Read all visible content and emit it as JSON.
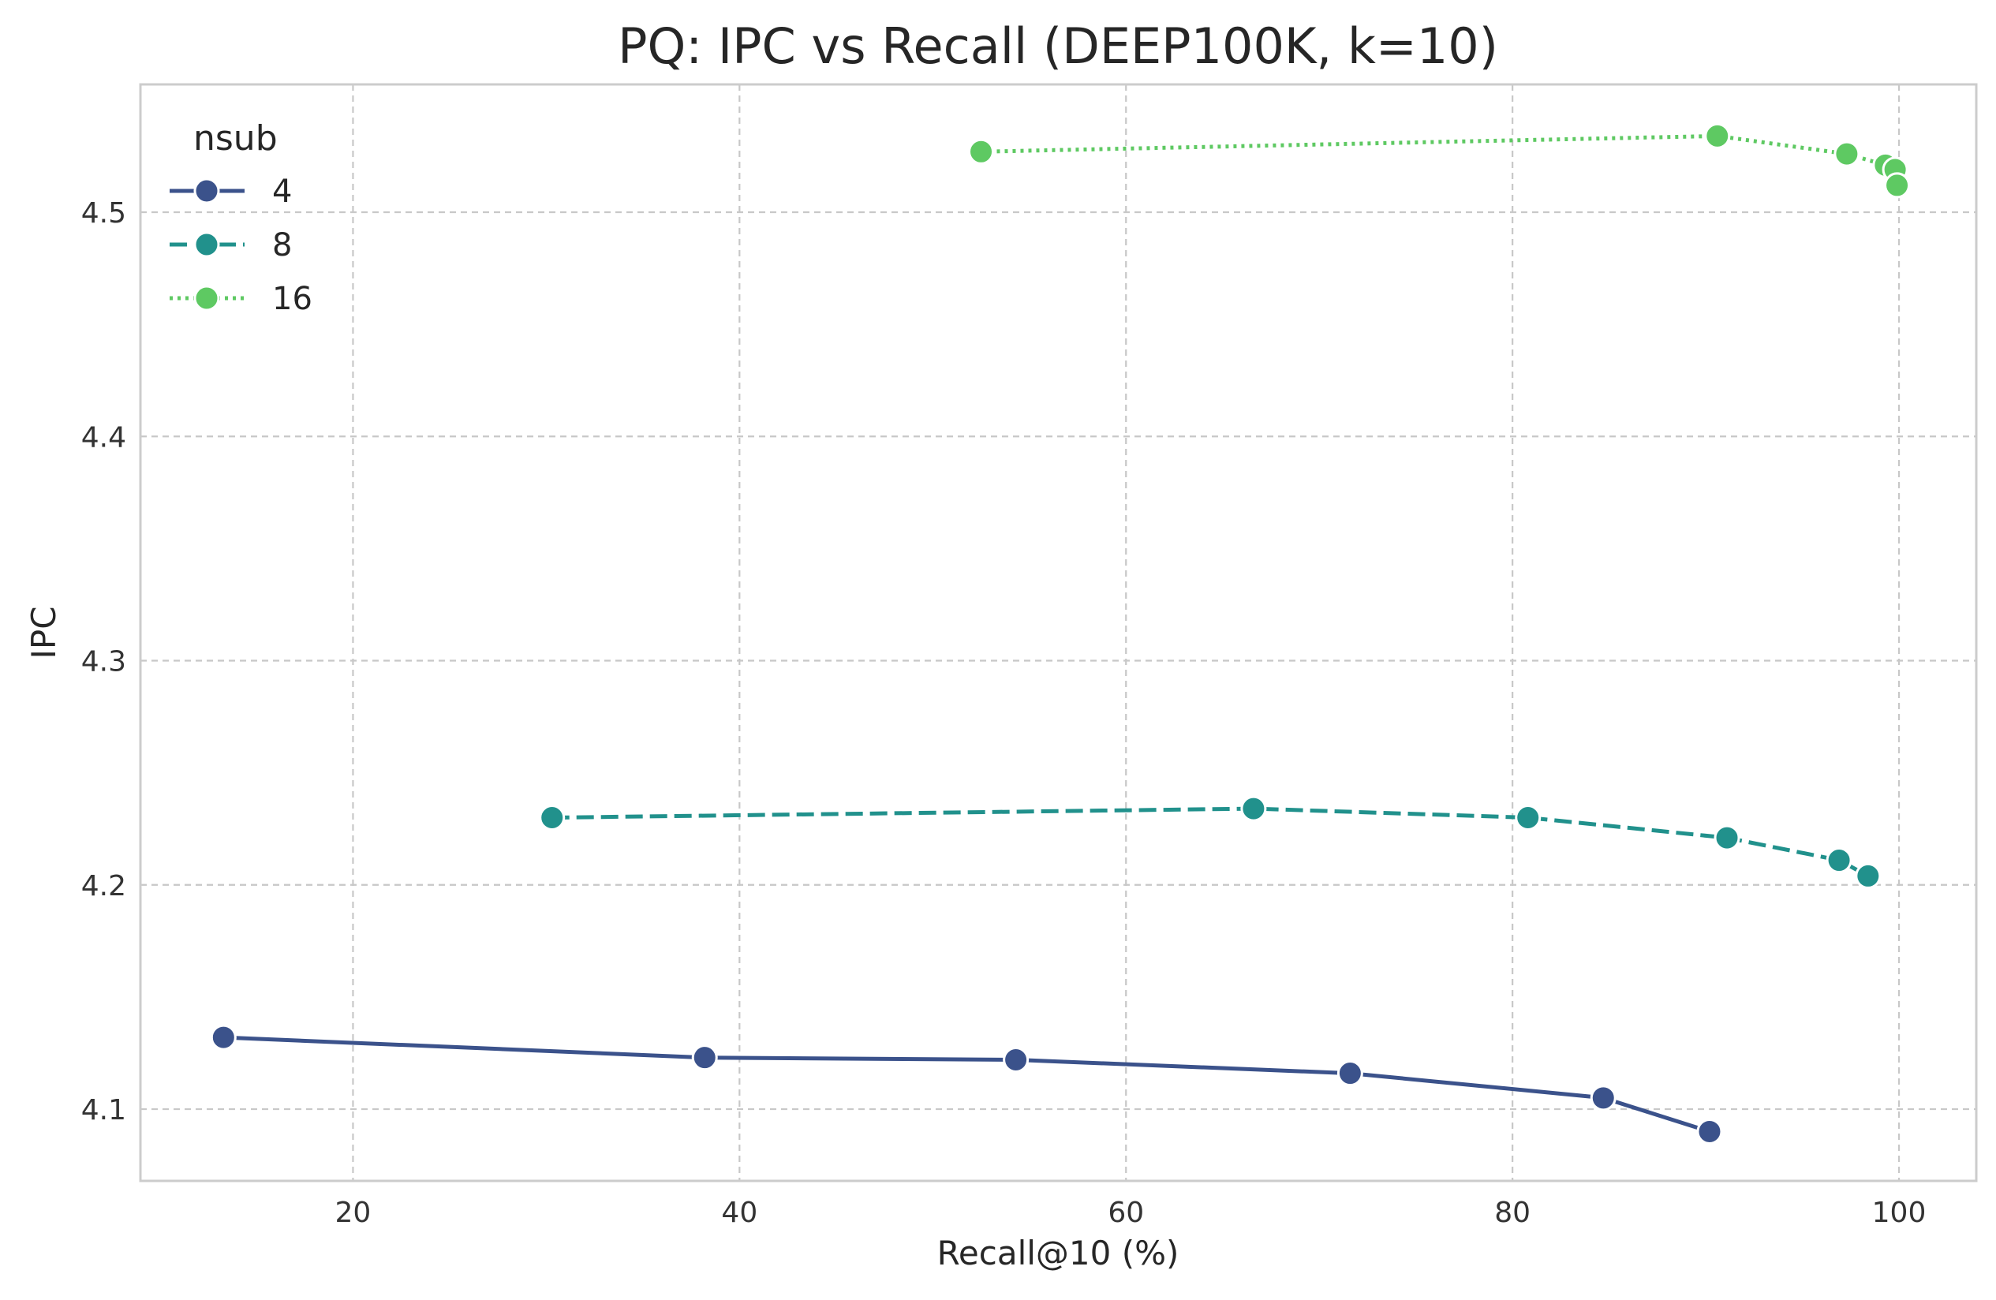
{
  "chart_data": {
    "type": "line",
    "title": "PQ: IPC vs Recall (DEEP100K, k=10)",
    "xlabel": "Recall@10 (%)",
    "ylabel": "IPC",
    "xlim": [
      9,
      104
    ],
    "ylim": [
      4.068,
      4.557
    ],
    "xticks": [
      20,
      40,
      60,
      80,
      100
    ],
    "xtick_labels": [
      "20",
      "40",
      "60",
      "80",
      "100"
    ],
    "yticks": [
      4.1,
      4.2,
      4.3,
      4.4,
      4.5
    ],
    "ytick_labels": [
      "4.1",
      "4.2",
      "4.3",
      "4.4",
      "4.5"
    ],
    "grid": true,
    "legend": {
      "title": "nsub",
      "position": "top-left"
    },
    "series": [
      {
        "name": "4",
        "color": "#3b528b",
        "line_style": "solid",
        "marker": "circle",
        "x": [
          13.3,
          38.2,
          54.3,
          71.6,
          84.7,
          90.2
        ],
        "y": [
          4.132,
          4.123,
          4.122,
          4.116,
          4.105,
          4.09
        ]
      },
      {
        "name": "8",
        "color": "#21918c",
        "line_style": "dashed",
        "marker": "circle",
        "x": [
          30.3,
          66.6,
          80.8,
          91.1,
          96.9,
          98.4
        ],
        "y": [
          4.23,
          4.234,
          4.23,
          4.221,
          4.211,
          4.204
        ]
      },
      {
        "name": "16",
        "color": "#5ec962",
        "line_style": "dotted",
        "marker": "circle",
        "x": [
          52.5,
          90.6,
          97.3,
          99.3,
          99.8,
          99.9
        ],
        "y": [
          4.527,
          4.534,
          4.526,
          4.521,
          4.519,
          4.512
        ]
      }
    ]
  }
}
